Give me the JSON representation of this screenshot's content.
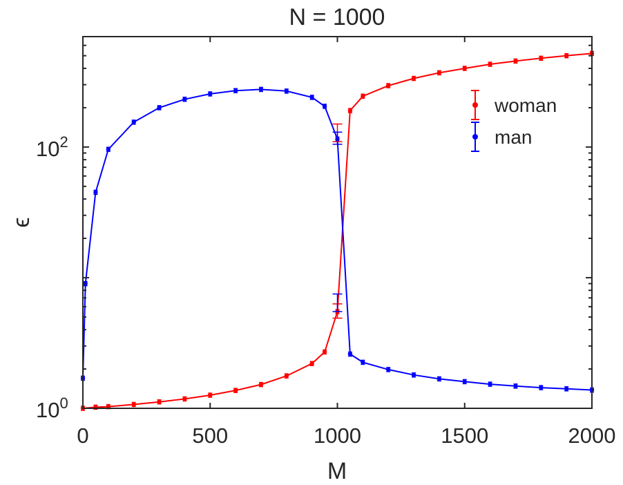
{
  "chart_data": {
    "type": "line",
    "title": "N = 1000",
    "xlabel": "M",
    "ylabel": "ϵ",
    "xlim": [
      0,
      2000
    ],
    "ylim": [
      1,
      700
    ],
    "yscale": "log",
    "xticks": [
      0,
      500,
      1000,
      1500,
      2000
    ],
    "xtick_labels": [
      "0",
      "500",
      "1000",
      "1500",
      "2000"
    ],
    "yticks": [
      {
        "value": 1,
        "base": "10",
        "exp": "0"
      },
      {
        "value": 100,
        "base": "10",
        "exp": "2"
      }
    ],
    "grid": false,
    "legend_position": "top-right",
    "series": [
      {
        "name": "woman",
        "color": "#ff0000",
        "points": [
          [
            0,
            1.0
          ],
          [
            50,
            1.02
          ],
          [
            100,
            1.03
          ],
          [
            200,
            1.07
          ],
          [
            300,
            1.12
          ],
          [
            400,
            1.18
          ],
          [
            500,
            1.26
          ],
          [
            600,
            1.37
          ],
          [
            700,
            1.52
          ],
          [
            800,
            1.77
          ],
          [
            900,
            2.2
          ],
          [
            950,
            2.7
          ],
          [
            1000,
            5.5
          ],
          [
            1050,
            190
          ],
          [
            1100,
            245
          ],
          [
            1200,
            295
          ],
          [
            1300,
            335
          ],
          [
            1400,
            370
          ],
          [
            1500,
            400
          ],
          [
            1600,
            430
          ],
          [
            1700,
            455
          ],
          [
            1800,
            478
          ],
          [
            1900,
            500
          ],
          [
            2000,
            520
          ]
        ],
        "errors": [
          [
            0,
            0.02
          ],
          [
            1000,
            0.8
          ],
          [
            1000,
            0.0
          ],
          [
            1050,
            8
          ],
          [
            1000,
            0.0
          ]
        ]
      },
      {
        "name": "man",
        "color": "#0000ff",
        "points": [
          [
            0,
            1.7
          ],
          [
            10,
            9
          ],
          [
            50,
            45
          ],
          [
            100,
            96
          ],
          [
            200,
            155
          ],
          [
            300,
            200
          ],
          [
            400,
            232
          ],
          [
            500,
            255
          ],
          [
            600,
            270
          ],
          [
            700,
            276
          ],
          [
            800,
            268
          ],
          [
            900,
            240
          ],
          [
            950,
            205
          ],
          [
            1000,
            115
          ],
          [
            1050,
            2.6
          ],
          [
            1100,
            2.25
          ],
          [
            1200,
            1.98
          ],
          [
            1300,
            1.8
          ],
          [
            1400,
            1.68
          ],
          [
            1500,
            1.6
          ],
          [
            1600,
            1.53
          ],
          [
            1700,
            1.48
          ],
          [
            1800,
            1.44
          ],
          [
            1900,
            1.41
          ],
          [
            2000,
            1.38
          ]
        ]
      }
    ],
    "error_bars": [
      {
        "series": "woman",
        "x": 1000,
        "lo": 4.9,
        "hi": 6.3
      },
      {
        "series": "woman",
        "x": 1000,
        "lo": 110,
        "hi": 150
      },
      {
        "series": "man",
        "x": 1000,
        "lo": 105,
        "hi": 130
      },
      {
        "series": "man",
        "x": 1000,
        "lo": 5.5,
        "hi": 7.5
      }
    ]
  }
}
